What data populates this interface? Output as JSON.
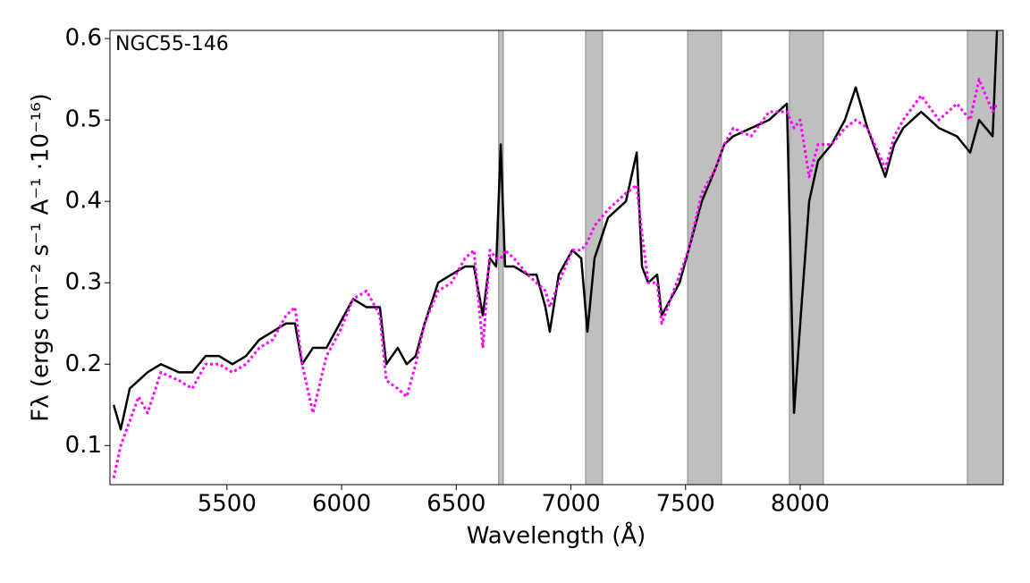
{
  "chart_data": {
    "type": "line",
    "annotation": "NGC55-146",
    "xlabel": "Wavelength (Å)",
    "ylabel": "Fλ (ergs cm⁻² s⁻¹ A⁻¹ ·10⁻¹⁶)",
    "x": [
      5006,
      5037,
      5076,
      5115,
      5154,
      5212,
      5290,
      5349,
      5407,
      5466,
      5524,
      5583,
      5641,
      5700,
      5758,
      5797,
      5828,
      5875,
      5934,
      5992,
      6050,
      6109,
      6167,
      6195,
      6245,
      6284,
      6323,
      6362,
      6421,
      6479,
      6538,
      6577,
      6616,
      6647,
      6674,
      6694,
      6713,
      6752,
      6811,
      6850,
      6889,
      6908,
      6947,
      7006,
      7045,
      7072,
      7103,
      7162,
      7240,
      7287,
      7310,
      7337,
      7376,
      7396,
      7435,
      7474,
      7513,
      7571,
      7630,
      7669,
      7708,
      7786,
      7864,
      7942,
      7973,
      8000,
      8039,
      8078,
      8137,
      8195,
      8242,
      8293,
      8371,
      8410,
      8449,
      8527,
      8605,
      8683,
      8741,
      8780,
      8839,
      8858
    ],
    "series": [
      {
        "color": "#000000",
        "linestyle": "solid",
        "values": [
          0.15,
          0.12,
          0.17,
          0.18,
          0.19,
          0.2,
          0.19,
          0.19,
          0.21,
          0.21,
          0.2,
          0.21,
          0.23,
          0.24,
          0.25,
          0.25,
          0.2,
          0.22,
          0.22,
          0.25,
          0.28,
          0.27,
          0.27,
          0.2,
          0.22,
          0.2,
          0.21,
          0.25,
          0.3,
          0.31,
          0.32,
          0.32,
          0.26,
          0.33,
          0.32,
          0.47,
          0.32,
          0.32,
          0.31,
          0.31,
          0.27,
          0.24,
          0.31,
          0.34,
          0.33,
          0.24,
          0.33,
          0.38,
          0.4,
          0.46,
          0.32,
          0.3,
          0.31,
          0.26,
          0.28,
          0.3,
          0.34,
          0.4,
          0.44,
          0.47,
          0.48,
          0.49,
          0.5,
          0.52,
          0.14,
          0.25,
          0.4,
          0.45,
          0.47,
          0.5,
          0.54,
          0.49,
          0.43,
          0.47,
          0.49,
          0.51,
          0.49,
          0.48,
          0.46,
          0.5,
          0.48,
          0.61
        ]
      },
      {
        "color": "#ff00ff",
        "linestyle": "dotted",
        "values": [
          0.06,
          0.1,
          0.13,
          0.16,
          0.14,
          0.19,
          0.18,
          0.17,
          0.2,
          0.2,
          0.19,
          0.2,
          0.22,
          0.23,
          0.26,
          0.27,
          0.2,
          0.14,
          0.21,
          0.24,
          0.28,
          0.29,
          0.26,
          0.18,
          0.17,
          0.16,
          0.2,
          0.25,
          0.29,
          0.3,
          0.33,
          0.34,
          0.22,
          0.34,
          0.33,
          0.33,
          0.34,
          0.33,
          0.31,
          0.3,
          0.29,
          0.27,
          0.3,
          0.34,
          0.34,
          0.35,
          0.37,
          0.39,
          0.41,
          0.42,
          0.36,
          0.3,
          0.3,
          0.25,
          0.28,
          0.31,
          0.34,
          0.41,
          0.44,
          0.47,
          0.49,
          0.48,
          0.51,
          0.51,
          0.49,
          0.5,
          0.43,
          0.47,
          0.47,
          0.49,
          0.5,
          0.49,
          0.44,
          0.48,
          0.5,
          0.53,
          0.5,
          0.52,
          0.5,
          0.55,
          0.51,
          0.52
        ]
      }
    ],
    "shaded_regions": [
      [
        6685,
        6705
      ],
      [
        7064,
        7138
      ],
      [
        7509,
        7657
      ],
      [
        7953,
        8101
      ],
      [
        8729,
        8885
      ]
    ],
    "shade_color": "#bfbfbf",
    "xlim": [
      4990,
      8885
    ],
    "ylim": [
      0.052,
      0.61
    ],
    "xticks": [
      5500,
      6000,
      6500,
      7000,
      7500,
      8000
    ],
    "yticks": [
      0.1,
      0.2,
      0.3,
      0.4,
      0.5,
      0.6
    ],
    "grid": false
  }
}
